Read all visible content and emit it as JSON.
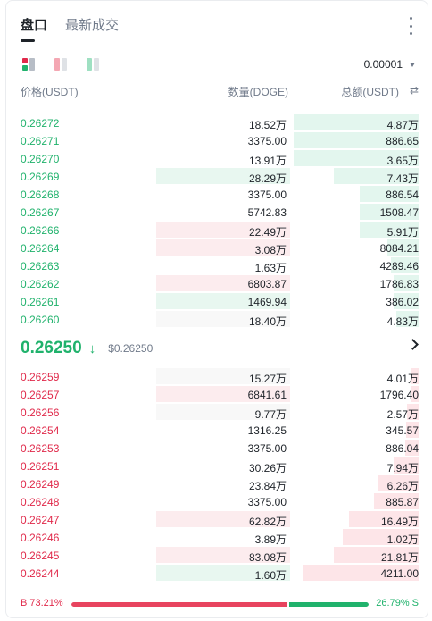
{
  "tabs": [
    {
      "label": "盘口",
      "active": true
    },
    {
      "label": "最新成交",
      "active": false
    }
  ],
  "precision": "0.00001",
  "headers": {
    "price": "价格(USDT)",
    "qty": "数量(DOGE)",
    "total": "总额(USDT)"
  },
  "colors": {
    "bid": "#20b26c",
    "ask": "#e0294a"
  },
  "bids_top": [
    {
      "price": "0.26272",
      "qty": "18.52万",
      "total": "4.87万",
      "depth": 1.0,
      "qty_bar": "none",
      "qty_fill": 0
    },
    {
      "price": "0.26271",
      "qty": "3375.00",
      "total": "886.65",
      "depth": 1.0,
      "qty_bar": "none",
      "qty_fill": 0
    },
    {
      "price": "0.26270",
      "qty": "13.91万",
      "total": "3.65万",
      "depth": 1.0,
      "qty_bar": "none",
      "qty_fill": 0
    },
    {
      "price": "0.26269",
      "qty": "28.29万",
      "total": "7.43万",
      "depth": 0.68,
      "qty_bar": "green",
      "qty_fill": 1.0
    },
    {
      "price": "0.26268",
      "qty": "3375.00",
      "total": "886.54",
      "depth": 0.47,
      "qty_bar": "none",
      "qty_fill": 0
    },
    {
      "price": "0.26267",
      "qty": "5742.83",
      "total": "1508.47",
      "depth": 0.47,
      "qty_bar": "none",
      "qty_fill": 0
    },
    {
      "price": "0.26266",
      "qty": "22.49万",
      "total": "5.91万",
      "depth": 0.47,
      "qty_bar": "red",
      "qty_fill": 1.0
    },
    {
      "price": "0.26264",
      "qty": "3.08万",
      "total": "8084.21",
      "depth": 0.25,
      "qty_bar": "red",
      "qty_fill": 1.0
    },
    {
      "price": "0.26263",
      "qty": "1.63万",
      "total": "4289.46",
      "depth": 0.22,
      "qty_bar": "none",
      "qty_fill": 0
    },
    {
      "price": "0.26262",
      "qty": "6803.87",
      "total": "1786.83",
      "depth": 0.2,
      "qty_bar": "red",
      "qty_fill": 1.0
    },
    {
      "price": "0.26261",
      "qty": "1469.94",
      "total": "386.02",
      "depth": 0.2,
      "qty_bar": "green",
      "qty_fill": 1.0
    },
    {
      "price": "0.26260",
      "qty": "18.40万",
      "total": "4.83万",
      "depth": 0.18,
      "qty_bar": "light",
      "qty_fill": 1.0
    }
  ],
  "mid": {
    "price": "0.26250",
    "arrow": "↓",
    "usd": "$0.26250"
  },
  "asks_bottom": [
    {
      "price": "0.26259",
      "qty": "15.27万",
      "total": "4.01万",
      "depth": 0.06,
      "qty_bar": "light",
      "qty_fill": 1.0
    },
    {
      "price": "0.26257",
      "qty": "6841.61",
      "total": "1796.40",
      "depth": 0.06,
      "qty_bar": "red",
      "qty_fill": 1.0
    },
    {
      "price": "0.26256",
      "qty": "9.77万",
      "total": "2.57万",
      "depth": 0.09,
      "qty_bar": "light",
      "qty_fill": 1.0
    },
    {
      "price": "0.26254",
      "qty": "1316.25",
      "total": "345.57",
      "depth": 0.1,
      "qty_bar": "none",
      "qty_fill": 0
    },
    {
      "price": "0.26253",
      "qty": "3375.00",
      "total": "886.04",
      "depth": 0.11,
      "qty_bar": "none",
      "qty_fill": 0
    },
    {
      "price": "0.26251",
      "qty": "30.26万",
      "total": "7.94万",
      "depth": 0.2,
      "qty_bar": "none",
      "qty_fill": 0
    },
    {
      "price": "0.26249",
      "qty": "23.84万",
      "total": "6.26万",
      "depth": 0.33,
      "qty_bar": "none",
      "qty_fill": 0
    },
    {
      "price": "0.26248",
      "qty": "3375.00",
      "total": "885.87",
      "depth": 0.36,
      "qty_bar": "none",
      "qty_fill": 0
    },
    {
      "price": "0.26247",
      "qty": "62.82万",
      "total": "16.49万",
      "depth": 0.56,
      "qty_bar": "red",
      "qty_fill": 1.0
    },
    {
      "price": "0.26246",
      "qty": "3.89万",
      "total": "1.02万",
      "depth": 0.61,
      "qty_bar": "none",
      "qty_fill": 0
    },
    {
      "price": "0.26245",
      "qty": "83.08万",
      "total": "21.81万",
      "depth": 0.68,
      "qty_bar": "red",
      "qty_fill": 1.0
    },
    {
      "price": "0.26244",
      "qty": "1.60万",
      "total": "4211.00",
      "depth": 0.93,
      "qty_bar": "green",
      "qty_fill": 1.0
    }
  ],
  "ratio": {
    "buy_label": "B 73.21%",
    "sell_label": "26.79% S",
    "buy": 73.21,
    "sell": 26.79
  }
}
